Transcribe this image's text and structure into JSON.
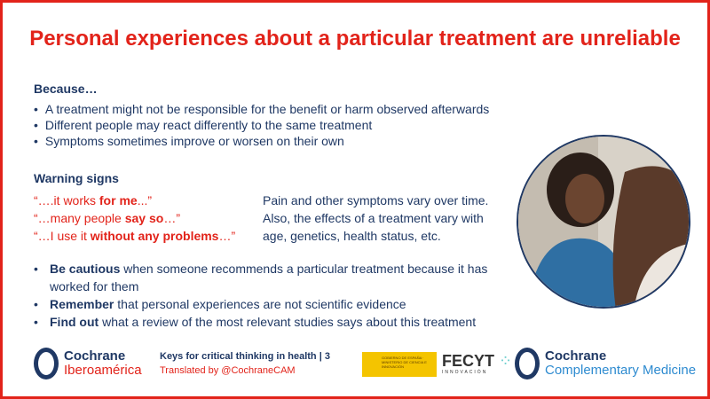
{
  "title": "Personal experiences about a particular treatment are unreliable",
  "because": {
    "heading": "Because…",
    "items": [
      "A treatment might not be responsible for the benefit or harm observed afterwards",
      "Different people may react differently to the same treatment",
      "Symptoms sometimes improve or worsen on their own"
    ]
  },
  "warning": {
    "heading": "Warning signs",
    "quotes": [
      {
        "pre": "“….it works ",
        "bold": "for me",
        "post": "...”"
      },
      {
        "pre": "“…many people ",
        "bold": "say so",
        "post": "…”"
      },
      {
        "pre": "“…I use it ",
        "bold": "without any problems",
        "post": "…”"
      }
    ],
    "note": [
      "Pain and other symptoms vary over time.",
      "Also, the effects of a treatment vary with",
      "age, genetics, health status,  etc."
    ]
  },
  "tips": [
    {
      "bold": "Be cautious",
      "text": " when someone recommends a particular treatment because it has worked for them"
    },
    {
      "bold": "Remember",
      "text": " that personal experiences are not scientific evidence"
    },
    {
      "bold": "Find out",
      "text": " what a review of the most relevant studies says about this treatment"
    }
  ],
  "footer": {
    "logo1": {
      "line1": "Cochrane",
      "line2": "Iberoamérica"
    },
    "keys": "Keys for critical thinking in health | 3",
    "translated": "Translated by @CochraneCAM",
    "gov": "GOBIERNO DE ESPAÑA · MINISTERIO DE CIENCIA E INNOVACIÓN",
    "fecyt": "FECYT",
    "fecyt_sub": "INNOVACIÓN",
    "logo2": {
      "line1": "Cochrane",
      "line2": "Complementary Medicine"
    }
  },
  "colors": {
    "accent": "#e2231a",
    "navy": "#1f3864",
    "blue": "#2e8bd0"
  }
}
